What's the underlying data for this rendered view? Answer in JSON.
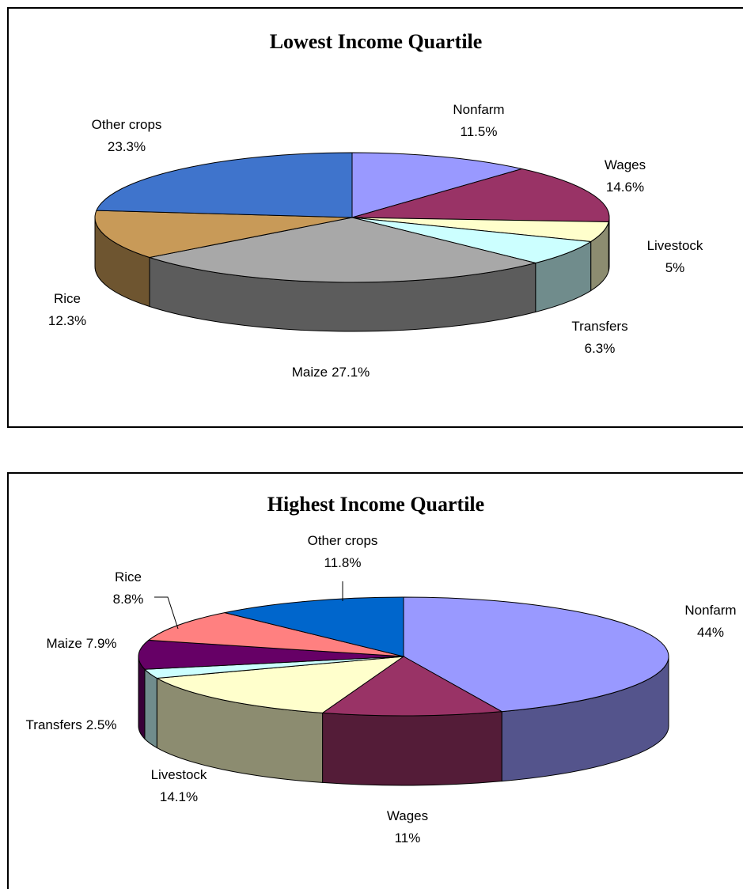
{
  "chart_data": [
    {
      "type": "pie",
      "title": "Lowest Income Quartile",
      "categories": [
        "Nonfarm",
        "Wages",
        "Livestock",
        "Transfers",
        "Maize",
        "Rice",
        "Other crops"
      ],
      "values": [
        11.5,
        14.6,
        5,
        6.3,
        27.1,
        12.3,
        23.3
      ],
      "value_labels": [
        "11.5%",
        "14.6%",
        "5%",
        "6.3%",
        "27.1%",
        "12.3%",
        "23.3%"
      ],
      "colors": [
        "#9999ff",
        "#993366",
        "#ffffcc",
        "#ccffff",
        "#a8a8a8",
        "#c89a58",
        "#3f74cc"
      ]
    },
    {
      "type": "pie",
      "title": "Highest Income Quartile",
      "categories": [
        "Nonfarm",
        "Wages",
        "Livestock",
        "Transfers",
        "Maize",
        "Rice",
        "Other crops"
      ],
      "values": [
        44,
        11,
        14.1,
        2.5,
        7.9,
        8.8,
        11.8
      ],
      "value_labels": [
        "44%",
        "11%",
        "14.1%",
        "2.5%",
        "7.9%",
        "8.8%",
        "11.8%"
      ],
      "colors": [
        "#9999ff",
        "#993366",
        "#ffffcc",
        "#ccffff",
        "#660066",
        "#ff8080",
        "#0066cc"
      ]
    }
  ]
}
